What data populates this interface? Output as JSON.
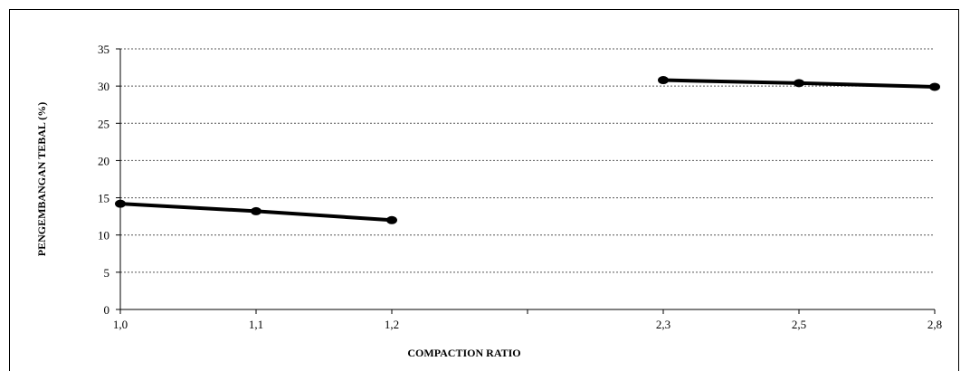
{
  "chart_data": {
    "type": "line",
    "title": "",
    "xlabel": "COMPACTION RATIO",
    "ylabel": "PENGEMBANGAN TEBAL (%)",
    "categories": [
      "1,0",
      "1,1",
      "1,2",
      "",
      "2,3",
      "2,5",
      "2,8"
    ],
    "ylim": [
      0,
      35
    ],
    "yticks": [
      "0",
      "5",
      "10",
      "15",
      "20",
      "25",
      "30",
      "35"
    ],
    "grid": true,
    "series": [
      {
        "values": [
          14.2,
          13.2,
          12.0,
          null,
          null,
          null,
          null
        ]
      },
      {
        "values": [
          null,
          null,
          null,
          null,
          30.8,
          30.4,
          29.9
        ]
      }
    ],
    "colors": {
      "line": "#000000",
      "grid": "#555555"
    }
  }
}
